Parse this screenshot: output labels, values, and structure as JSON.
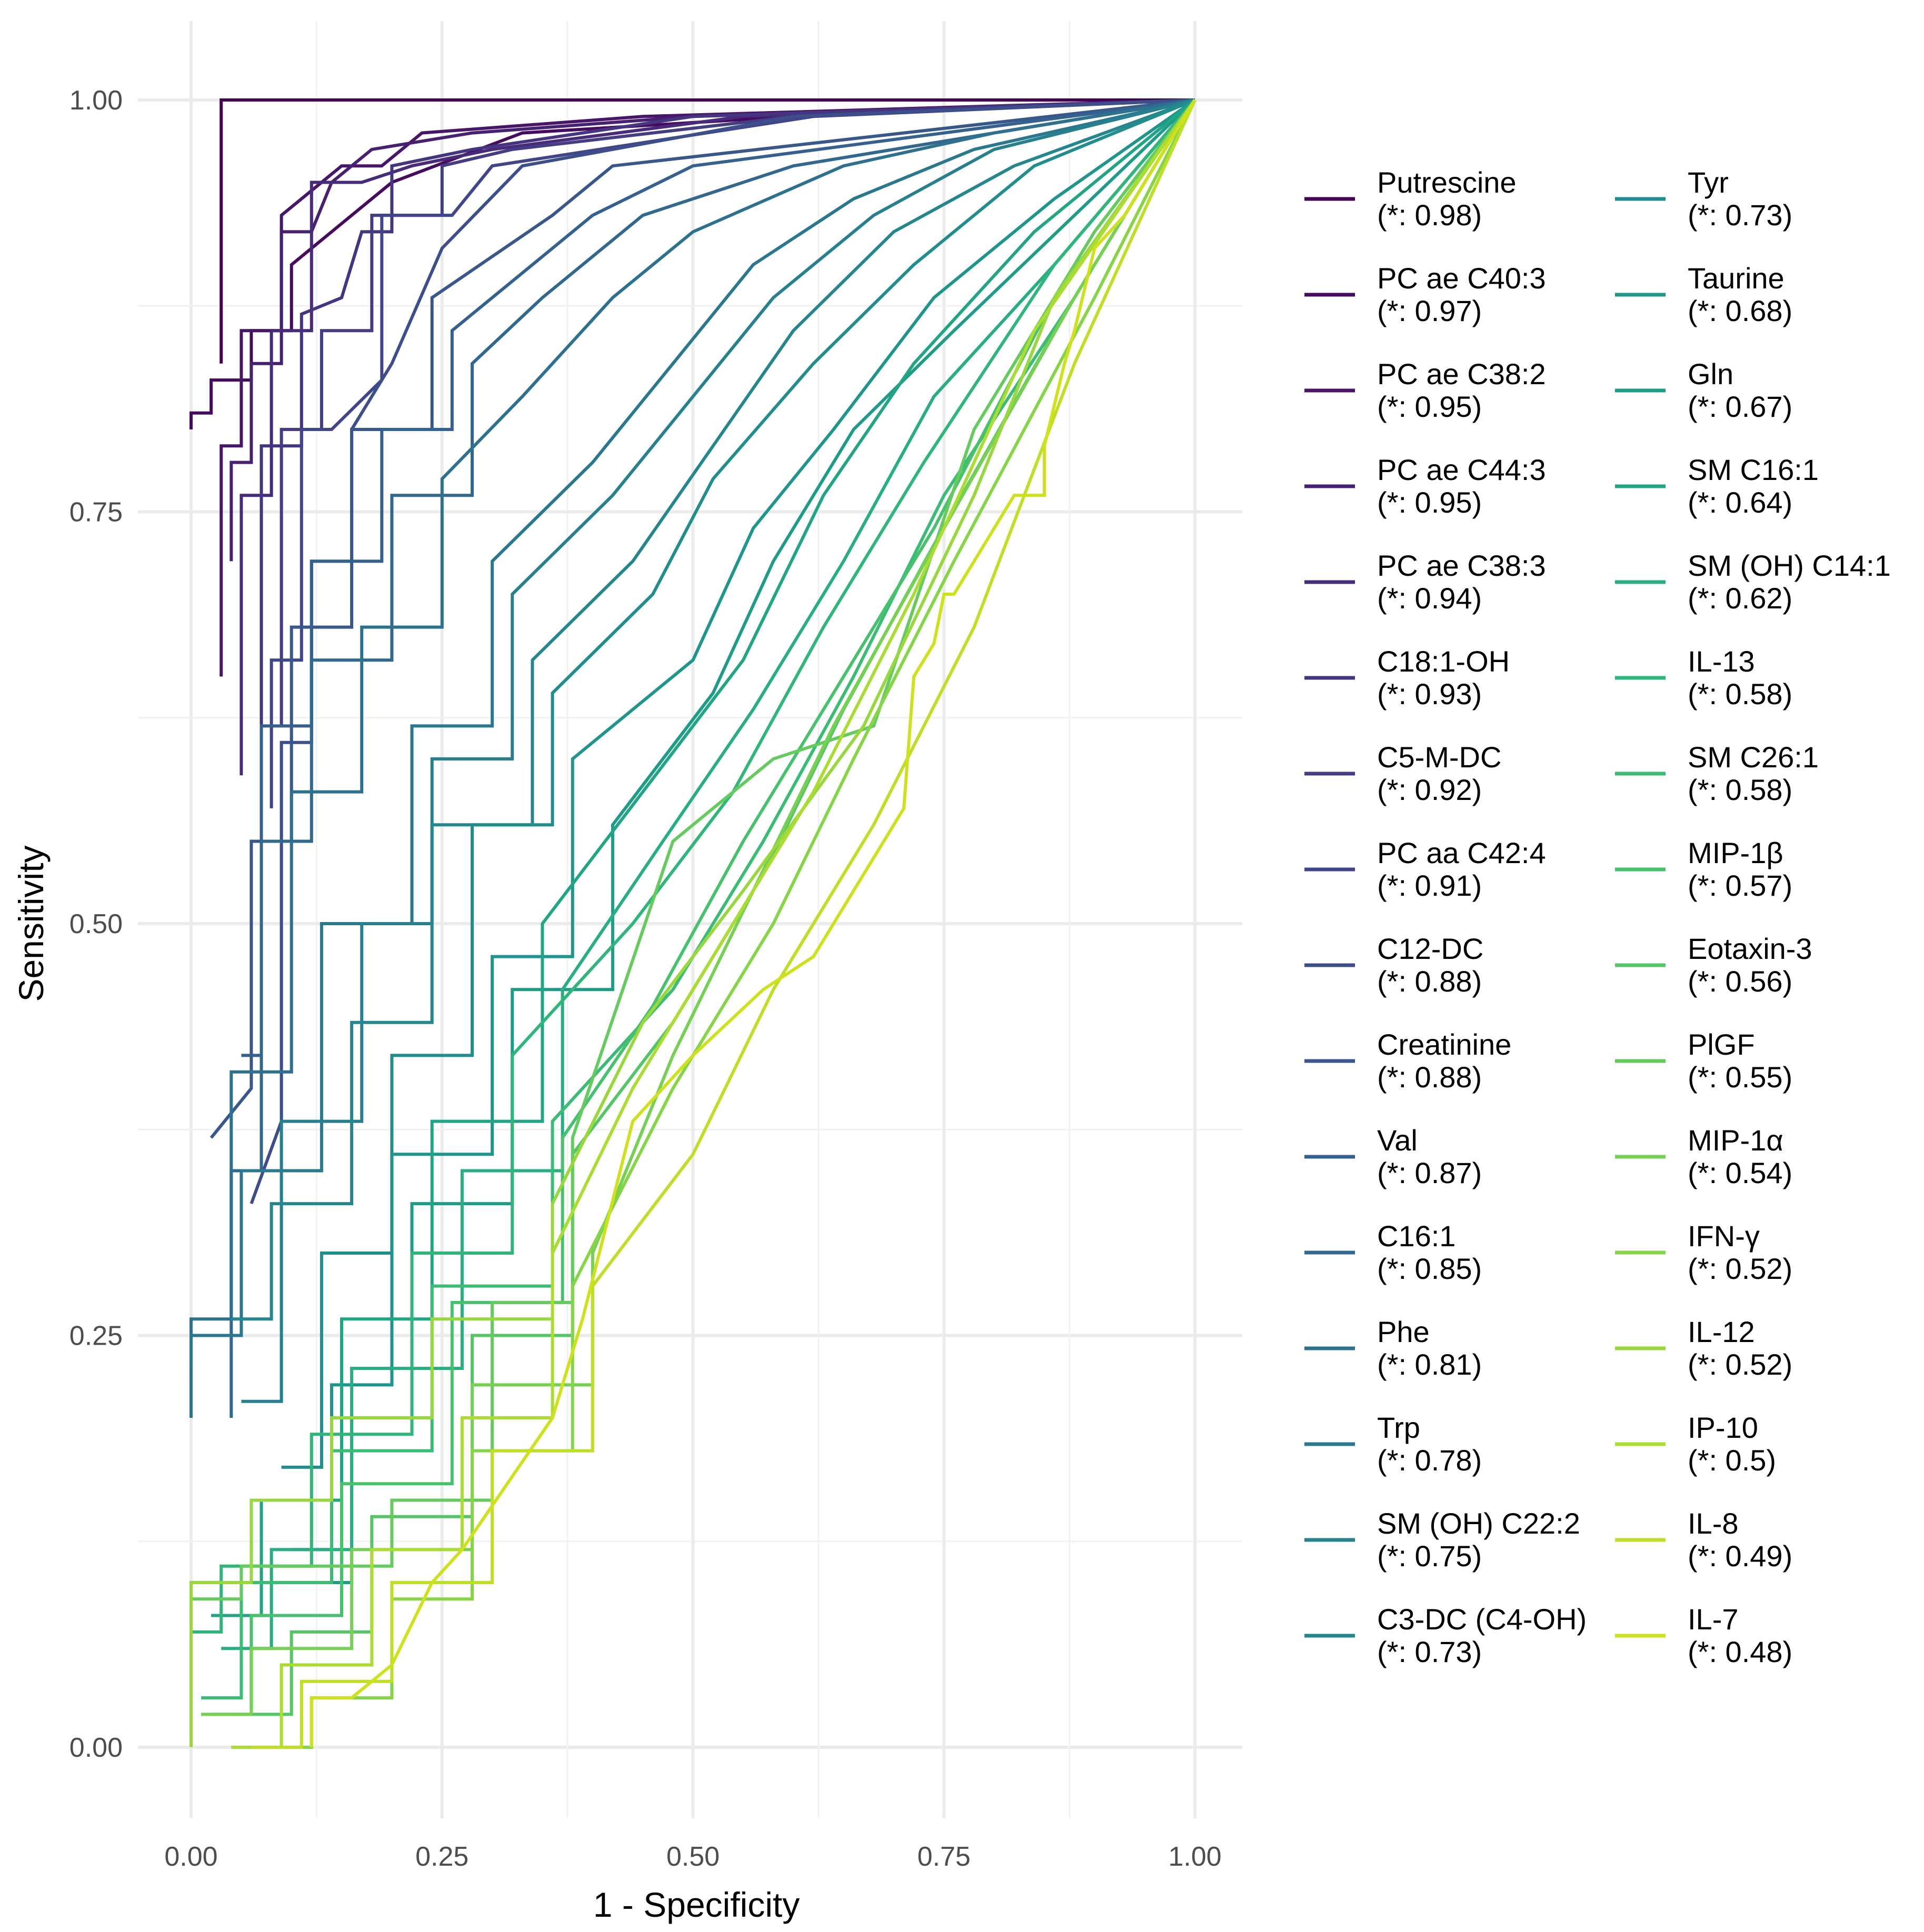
{
  "chart_data": {
    "type": "line",
    "title": "",
    "xlabel": "1 - Specificity",
    "ylabel": "Sensitivity",
    "xlim": [
      0,
      1
    ],
    "ylim": [
      0,
      1
    ],
    "x_ticks": [
      "0.00",
      "0.25",
      "0.50",
      "0.75",
      "1.00"
    ],
    "y_ticks": [
      "0.00",
      "0.25",
      "0.50",
      "0.75",
      "1.00"
    ],
    "grid": true,
    "legend_position": "right",
    "series": [
      {
        "name": "Putrescine",
        "auc_label": "(*: 0.98)",
        "color": "#440154",
        "x": [
          0.03,
          0.03,
          0.06,
          0.1,
          1.0
        ],
        "y": [
          0.84,
          1.0,
          1.0,
          1.0,
          1.0
        ]
      },
      {
        "name": "PC ae C40:3",
        "auc_label": "(*: 0.97)",
        "color": "#460B5E",
        "x": [
          0.0,
          0.0,
          0.02,
          0.02,
          0.06,
          0.06,
          0.1,
          0.1,
          0.2,
          0.33,
          0.6,
          1.0
        ],
        "y": [
          0.8,
          0.81,
          0.81,
          0.83,
          0.83,
          0.86,
          0.86,
          0.9,
          0.95,
          0.98,
          0.99,
          1.0
        ]
      },
      {
        "name": "PC ae C38:2",
        "auc_label": "(*: 0.95)",
        "color": "#481668",
        "x": [
          0.03,
          0.03,
          0.05,
          0.05,
          0.09,
          0.09,
          0.13,
          0.15,
          0.19,
          0.23,
          0.45,
          1.0
        ],
        "y": [
          0.65,
          0.79,
          0.79,
          0.86,
          0.86,
          0.93,
          0.95,
          0.96,
          0.96,
          0.98,
          0.99,
          1.0
        ]
      },
      {
        "name": "PC ae C44:3",
        "auc_label": "(*: 0.95)",
        "color": "#482071",
        "x": [
          0.04,
          0.04,
          0.06,
          0.06,
          0.09,
          0.09,
          0.12,
          0.14,
          0.18,
          0.28,
          0.5,
          1.0
        ],
        "y": [
          0.72,
          0.78,
          0.78,
          0.84,
          0.84,
          0.92,
          0.92,
          0.95,
          0.97,
          0.98,
          0.99,
          1.0
        ]
      },
      {
        "name": "PC ae C38:3",
        "auc_label": "(*: 0.94)",
        "color": "#472A7A",
        "x": [
          0.05,
          0.05,
          0.08,
          0.08,
          0.12,
          0.12,
          0.17,
          0.22,
          0.3,
          0.55,
          1.0
        ],
        "y": [
          0.59,
          0.76,
          0.76,
          0.86,
          0.86,
          0.95,
          0.95,
          0.96,
          0.97,
          0.99,
          1.0
        ]
      },
      {
        "name": "C18:1-OH",
        "auc_label": "(*: 0.93)",
        "color": "#453581",
        "x": [
          0.07,
          0.07,
          0.11,
          0.11,
          0.15,
          0.17,
          0.2,
          0.2,
          0.28,
          0.5,
          1.0
        ],
        "y": [
          0.47,
          0.79,
          0.79,
          0.87,
          0.88,
          0.92,
          0.92,
          0.96,
          0.97,
          0.99,
          1.0
        ]
      },
      {
        "name": "C5-M-DC",
        "auc_label": "(*: 0.92)",
        "color": "#433D84",
        "x": [
          0.09,
          0.09,
          0.13,
          0.13,
          0.18,
          0.18,
          0.25,
          0.25,
          0.32,
          0.6,
          1.0
        ],
        "y": [
          0.62,
          0.8,
          0.8,
          0.86,
          0.86,
          0.93,
          0.93,
          0.96,
          0.97,
          0.99,
          1.0
        ]
      },
      {
        "name": "PC aa C42:4",
        "auc_label": "(*: 0.91)",
        "color": "#404688",
        "x": [
          0.08,
          0.08,
          0.11,
          0.11,
          0.14,
          0.19,
          0.19,
          0.26,
          0.3,
          0.62,
          1.0
        ],
        "y": [
          0.57,
          0.66,
          0.66,
          0.8,
          0.8,
          0.83,
          0.93,
          0.93,
          0.96,
          0.99,
          1.0
        ]
      },
      {
        "name": "C12-DC",
        "auc_label": "(*: 0.88)",
        "color": "#3C4F8A",
        "x": [
          0.06,
          0.09,
          0.09,
          0.12,
          0.12,
          0.16,
          0.16,
          0.2,
          0.25,
          0.33,
          0.6,
          1.0
        ],
        "y": [
          0.33,
          0.38,
          0.61,
          0.61,
          0.72,
          0.72,
          0.8,
          0.84,
          0.91,
          0.96,
          0.99,
          1.0
        ]
      },
      {
        "name": "Creatinine",
        "auc_label": "(*: 0.88)",
        "color": "#38588C",
        "x": [
          0.02,
          0.06,
          0.06,
          0.1,
          0.1,
          0.16,
          0.16,
          0.24,
          0.24,
          0.36,
          0.42,
          1.0
        ],
        "y": [
          0.37,
          0.4,
          0.55,
          0.55,
          0.68,
          0.68,
          0.8,
          0.8,
          0.88,
          0.93,
          0.96,
          1.0
        ]
      },
      {
        "name": "Val",
        "auc_label": "(*: 0.87)",
        "color": "#34618D",
        "x": [
          0.05,
          0.07,
          0.07,
          0.12,
          0.12,
          0.19,
          0.19,
          0.26,
          0.26,
          0.34,
          0.4,
          0.5,
          1.0
        ],
        "y": [
          0.42,
          0.42,
          0.62,
          0.62,
          0.72,
          0.72,
          0.8,
          0.8,
          0.86,
          0.9,
          0.93,
          0.96,
          1.0
        ]
      },
      {
        "name": "C16:1",
        "auc_label": "(*: 0.85)",
        "color": "#31688E",
        "x": [
          0.04,
          0.04,
          0.07,
          0.07,
          0.12,
          0.12,
          0.2,
          0.2,
          0.28,
          0.28,
          0.35,
          0.45,
          0.6,
          0.8,
          1.0
        ],
        "y": [
          0.2,
          0.35,
          0.35,
          0.55,
          0.55,
          0.66,
          0.66,
          0.76,
          0.76,
          0.84,
          0.88,
          0.93,
          0.96,
          0.98,
          1.0
        ]
      },
      {
        "name": "Phe",
        "auc_label": "(*: 0.81)",
        "color": "#2D718E",
        "x": [
          0.0,
          0.0,
          0.04,
          0.04,
          0.1,
          0.1,
          0.17,
          0.17,
          0.25,
          0.25,
          0.33,
          0.42,
          0.5,
          0.65,
          0.8,
          1.0
        ],
        "y": [
          0.2,
          0.26,
          0.26,
          0.41,
          0.41,
          0.58,
          0.58,
          0.68,
          0.68,
          0.77,
          0.82,
          0.88,
          0.92,
          0.96,
          0.98,
          1.0
        ]
      },
      {
        "name": "Trp",
        "auc_label": "(*: 0.78)",
        "color": "#2A788E",
        "x": [
          0.0,
          0.0,
          0.05,
          0.05,
          0.13,
          0.13,
          0.22,
          0.22,
          0.3,
          0.3,
          0.4,
          0.48,
          0.56,
          0.66,
          0.78,
          1.0
        ],
        "y": [
          0.23,
          0.25,
          0.25,
          0.35,
          0.35,
          0.5,
          0.5,
          0.62,
          0.62,
          0.72,
          0.78,
          0.84,
          0.9,
          0.94,
          0.97,
          1.0
        ]
      },
      {
        "name": "SM (OH) C22:2",
        "auc_label": "(*: 0.75)",
        "color": "#27808E",
        "x": [
          0.05,
          0.09,
          0.09,
          0.17,
          0.17,
          0.24,
          0.24,
          0.32,
          0.32,
          0.42,
          0.5,
          0.58,
          0.68,
          0.8,
          1.0
        ],
        "y": [
          0.21,
          0.21,
          0.38,
          0.38,
          0.5,
          0.5,
          0.6,
          0.6,
          0.7,
          0.76,
          0.82,
          0.88,
          0.93,
          0.97,
          1.0
        ]
      },
      {
        "name": "C3-DC (C4-OH)",
        "auc_label": "(*: 0.73)",
        "color": "#25878E",
        "x": [
          0.04,
          0.08,
          0.08,
          0.16,
          0.16,
          0.24,
          0.24,
          0.34,
          0.34,
          0.44,
          0.52,
          0.6,
          0.7,
          0.82,
          1.0
        ],
        "y": [
          0.26,
          0.26,
          0.33,
          0.33,
          0.44,
          0.44,
          0.56,
          0.56,
          0.66,
          0.72,
          0.79,
          0.86,
          0.92,
          0.96,
          1.0
        ]
      },
      {
        "name": "Tyr",
        "auc_label": "(*: 0.73)",
        "color": "#228D8D",
        "x": [
          0.09,
          0.13,
          0.13,
          0.2,
          0.2,
          0.28,
          0.28,
          0.36,
          0.36,
          0.46,
          0.52,
          0.62,
          0.72,
          0.84,
          1.0
        ],
        "y": [
          0.17,
          0.17,
          0.3,
          0.3,
          0.42,
          0.42,
          0.56,
          0.56,
          0.64,
          0.7,
          0.77,
          0.84,
          0.9,
          0.96,
          1.0
        ]
      },
      {
        "name": "Taurine",
        "auc_label": "(*: 0.68)",
        "color": "#1F958B",
        "x": [
          0.1,
          0.14,
          0.14,
          0.2,
          0.2,
          0.3,
          0.3,
          0.38,
          0.38,
          0.5,
          0.56,
          0.64,
          0.74,
          0.86,
          1.0
        ],
        "y": [
          0.12,
          0.12,
          0.22,
          0.22,
          0.36,
          0.36,
          0.48,
          0.48,
          0.6,
          0.66,
          0.74,
          0.8,
          0.88,
          0.94,
          1.0
        ]
      },
      {
        "name": "Gln",
        "auc_label": "(*: 0.67)",
        "color": "#1F9C87",
        "x": [
          0.12,
          0.16,
          0.16,
          0.22,
          0.22,
          0.32,
          0.32,
          0.42,
          0.42,
          0.52,
          0.58,
          0.66,
          0.76,
          0.88,
          1.0
        ],
        "y": [
          0.1,
          0.1,
          0.2,
          0.2,
          0.33,
          0.33,
          0.46,
          0.46,
          0.56,
          0.64,
          0.72,
          0.8,
          0.86,
          0.93,
          1.0
        ]
      },
      {
        "name": "SM C16:1",
        "auc_label": "(*: 0.64)",
        "color": "#21A585",
        "x": [
          0.02,
          0.07,
          0.07,
          0.15,
          0.15,
          0.24,
          0.24,
          0.35,
          0.35,
          0.45,
          0.55,
          0.63,
          0.72,
          0.84,
          1.0
        ],
        "y": [
          0.08,
          0.08,
          0.15,
          0.15,
          0.26,
          0.26,
          0.38,
          0.38,
          0.5,
          0.58,
          0.66,
          0.76,
          0.84,
          0.92,
          1.0
        ]
      },
      {
        "name": "SM (OH) C14:1",
        "auc_label": "(*: 0.62)",
        "color": "#28AE80",
        "x": [
          0.03,
          0.08,
          0.08,
          0.16,
          0.16,
          0.27,
          0.27,
          0.37,
          0.37,
          0.47,
          0.56,
          0.65,
          0.74,
          0.86,
          1.0
        ],
        "y": [
          0.06,
          0.06,
          0.12,
          0.12,
          0.23,
          0.23,
          0.35,
          0.35,
          0.46,
          0.55,
          0.63,
          0.72,
          0.82,
          0.9,
          1.0
        ]
      },
      {
        "name": "IL-13",
        "auc_label": "(*: 0.58)",
        "color": "#30B57B",
        "x": [
          0.0,
          0.03,
          0.03,
          0.12,
          0.12,
          0.22,
          0.22,
          0.32,
          0.32,
          0.44,
          0.54,
          0.63,
          0.73,
          0.86,
          1.0
        ],
        "y": [
          0.07,
          0.07,
          0.11,
          0.11,
          0.19,
          0.19,
          0.3,
          0.3,
          0.42,
          0.5,
          0.58,
          0.68,
          0.78,
          0.9,
          1.0
        ]
      },
      {
        "name": "SM C26:1",
        "auc_label": "(*: 0.58)",
        "color": "#3ABC75",
        "x": [
          0.01,
          0.05,
          0.05,
          0.14,
          0.14,
          0.24,
          0.24,
          0.36,
          0.36,
          0.48,
          0.57,
          0.66,
          0.75,
          0.88,
          1.0
        ],
        "y": [
          0.03,
          0.03,
          0.1,
          0.1,
          0.18,
          0.18,
          0.28,
          0.28,
          0.38,
          0.46,
          0.55,
          0.65,
          0.76,
          0.88,
          1.0
        ]
      },
      {
        "name": "MIP-1β",
        "auc_label": "(*: 0.57)",
        "color": "#48C16E",
        "x": [
          0.02,
          0.06,
          0.06,
          0.15,
          0.15,
          0.26,
          0.26,
          0.37,
          0.37,
          0.46,
          0.55,
          0.64,
          0.74,
          0.86,
          1.0
        ],
        "y": [
          0.02,
          0.02,
          0.08,
          0.08,
          0.16,
          0.16,
          0.27,
          0.27,
          0.37,
          0.45,
          0.55,
          0.64,
          0.74,
          0.88,
          1.0
        ]
      },
      {
        "name": "Eotaxin-3",
        "auc_label": "(*: 0.56)",
        "color": "#55C667",
        "x": [
          0.04,
          0.1,
          0.1,
          0.18,
          0.18,
          0.28,
          0.28,
          0.38,
          0.38,
          0.48,
          0.57,
          0.65,
          0.74,
          0.87,
          1.0
        ],
        "y": [
          0.02,
          0.02,
          0.07,
          0.07,
          0.14,
          0.14,
          0.25,
          0.25,
          0.36,
          0.44,
          0.53,
          0.63,
          0.73,
          0.87,
          1.0
        ]
      },
      {
        "name": "PlGF",
        "auc_label": "(*: 0.55)",
        "color": "#65CB5E",
        "x": [
          0.0,
          0.0,
          0.05,
          0.05,
          0.2,
          0.2,
          0.3,
          0.3,
          0.38,
          0.38,
          0.48,
          0.58,
          0.68,
          0.78,
          0.9,
          1.0
        ],
        "y": [
          0.02,
          0.09,
          0.09,
          0.11,
          0.11,
          0.15,
          0.15,
          0.27,
          0.27,
          0.37,
          0.55,
          0.6,
          0.62,
          0.8,
          0.92,
          1.0
        ]
      },
      {
        "name": "MIP-1α",
        "auc_label": "(*: 0.54)",
        "color": "#75D054",
        "x": [
          0.01,
          0.06,
          0.06,
          0.16,
          0.16,
          0.28,
          0.28,
          0.4,
          0.4,
          0.48,
          0.56,
          0.64,
          0.75,
          0.88,
          1.0
        ],
        "y": [
          0.02,
          0.02,
          0.06,
          0.06,
          0.12,
          0.12,
          0.22,
          0.22,
          0.3,
          0.42,
          0.52,
          0.62,
          0.74,
          0.88,
          1.0
        ]
      },
      {
        "name": "IFN-γ",
        "auc_label": "(*: 0.52)",
        "color": "#86D549",
        "x": [
          0.05,
          0.12,
          0.12,
          0.2,
          0.2,
          0.28,
          0.28,
          0.38,
          0.38,
          0.48,
          0.58,
          0.66,
          0.76,
          0.9,
          1.0
        ],
        "y": [
          0.0,
          0.0,
          0.03,
          0.03,
          0.09,
          0.09,
          0.18,
          0.18,
          0.28,
          0.4,
          0.5,
          0.6,
          0.72,
          0.88,
          1.0
        ]
      },
      {
        "name": "IL-12",
        "auc_label": "(*: 0.52)",
        "color": "#98D83E",
        "x": [
          0.0,
          0.0,
          0.06,
          0.06,
          0.14,
          0.14,
          0.24,
          0.24,
          0.36,
          0.36,
          0.45,
          0.55,
          0.67,
          0.78,
          0.86,
          1.0
        ],
        "y": [
          0.0,
          0.1,
          0.1,
          0.15,
          0.15,
          0.2,
          0.2,
          0.26,
          0.26,
          0.33,
          0.44,
          0.52,
          0.62,
          0.76,
          0.88,
          1.0
        ]
      },
      {
        "name": "IP-10",
        "auc_label": "(*: 0.5)",
        "color": "#AADC32",
        "x": [
          0.04,
          0.09,
          0.09,
          0.18,
          0.18,
          0.27,
          0.27,
          0.36,
          0.36,
          0.44,
          0.52,
          0.62,
          0.72,
          0.84,
          1.0
        ],
        "y": [
          0.0,
          0.0,
          0.05,
          0.05,
          0.12,
          0.12,
          0.2,
          0.2,
          0.3,
          0.4,
          0.48,
          0.58,
          0.7,
          0.86,
          1.0
        ]
      },
      {
        "name": "IL-8",
        "auc_label": "(*: 0.49)",
        "color": "#BDDF26",
        "x": [
          0.06,
          0.11,
          0.11,
          0.2,
          0.2,
          0.3,
          0.3,
          0.4,
          0.4,
          0.5,
          0.58,
          0.68,
          0.78,
          0.88,
          1.0
        ],
        "y": [
          0.0,
          0.0,
          0.04,
          0.04,
          0.1,
          0.1,
          0.18,
          0.18,
          0.28,
          0.36,
          0.46,
          0.56,
          0.68,
          0.84,
          1.0
        ]
      },
      {
        "name": "IL-7",
        "auc_label": "(*: 0.48)",
        "color": "#CFE11C",
        "x": [
          0.12,
          0.12,
          0.16,
          0.2,
          0.24,
          0.27,
          0.36,
          0.39,
          0.44,
          0.5,
          0.57,
          0.62,
          0.71,
          0.72,
          0.74,
          0.75,
          0.76,
          0.78,
          0.82,
          0.85,
          0.85,
          0.87,
          0.88,
          0.9,
          0.93,
          1.0
        ],
        "y": [
          0.0,
          0.03,
          0.03,
          0.05,
          0.1,
          0.12,
          0.2,
          0.26,
          0.38,
          0.42,
          0.46,
          0.48,
          0.57,
          0.65,
          0.67,
          0.7,
          0.7,
          0.72,
          0.76,
          0.76,
          0.79,
          0.84,
          0.86,
          0.91,
          0.93,
          1.0
        ]
      }
    ]
  }
}
